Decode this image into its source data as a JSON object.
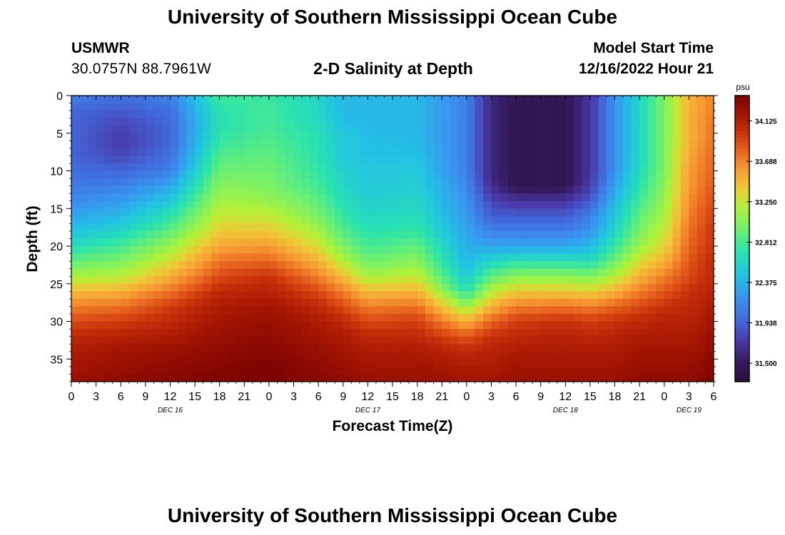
{
  "header": {
    "title": "University of Southern Mississippi Ocean Cube",
    "station": "USMWR",
    "coordinates": "30.0757N  88.7961W",
    "subtitle": "2-D Salinity at Depth",
    "start_label": "Model Start Time",
    "start_value": "12/16/2022 Hour 21"
  },
  "footer": {
    "title": "University of Southern Mississippi Ocean Cube"
  },
  "chart_data": {
    "type": "heatmap",
    "title": "2-D Salinity at Depth",
    "xlabel": "Forecast Time(Z)",
    "ylabel": "Depth (ft)",
    "x_range": [
      0,
      78
    ],
    "x_unit": "hours since Dec 16 00Z",
    "y_range": [
      0,
      38
    ],
    "x_ticks": [
      {
        "h": 0,
        "label": "0"
      },
      {
        "h": 3,
        "label": "3"
      },
      {
        "h": 6,
        "label": "6"
      },
      {
        "h": 9,
        "label": "9"
      },
      {
        "h": 12,
        "label": "12"
      },
      {
        "h": 15,
        "label": "15"
      },
      {
        "h": 18,
        "label": "18"
      },
      {
        "h": 21,
        "label": "21"
      },
      {
        "h": 24,
        "label": "0"
      },
      {
        "h": 27,
        "label": "3"
      },
      {
        "h": 30,
        "label": "6"
      },
      {
        "h": 33,
        "label": "9"
      },
      {
        "h": 36,
        "label": "12"
      },
      {
        "h": 39,
        "label": "15"
      },
      {
        "h": 42,
        "label": "18"
      },
      {
        "h": 45,
        "label": "21"
      },
      {
        "h": 48,
        "label": "0"
      },
      {
        "h": 51,
        "label": "3"
      },
      {
        "h": 54,
        "label": "6"
      },
      {
        "h": 57,
        "label": "9"
      },
      {
        "h": 60,
        "label": "12"
      },
      {
        "h": 63,
        "label": "15"
      },
      {
        "h": 66,
        "label": "18"
      },
      {
        "h": 69,
        "label": "21"
      },
      {
        "h": 72,
        "label": "0"
      },
      {
        "h": 75,
        "label": "3"
      },
      {
        "h": 78,
        "label": "6"
      }
    ],
    "date_labels": [
      {
        "h": 12,
        "label": "DEC 16"
      },
      {
        "h": 36,
        "label": "DEC 17"
      },
      {
        "h": 60,
        "label": "DEC 18"
      },
      {
        "h": 75,
        "label": "DEC 19"
      }
    ],
    "y_ticks": [
      0,
      5,
      10,
      15,
      20,
      25,
      30,
      35
    ],
    "colorbar": {
      "unit": "psu",
      "min": 31.3,
      "max": 34.4,
      "ticks": [
        "34.125",
        "33.688",
        "33.250",
        "32.812",
        "32.375",
        "31.938",
        "31.500"
      ]
    },
    "colormap": [
      {
        "v": 31.3,
        "c": "#2a0f3e"
      },
      {
        "v": 31.5,
        "c": "#33195c"
      },
      {
        "v": 31.75,
        "c": "#4a3aaa"
      },
      {
        "v": 31.95,
        "c": "#4266d8"
      },
      {
        "v": 32.2,
        "c": "#3a92f0"
      },
      {
        "v": 32.45,
        "c": "#22c2e4"
      },
      {
        "v": 32.7,
        "c": "#28e2b0"
      },
      {
        "v": 32.95,
        "c": "#6ef070"
      },
      {
        "v": 33.2,
        "c": "#b4f236"
      },
      {
        "v": 33.4,
        "c": "#f0c838"
      },
      {
        "v": 33.6,
        "c": "#f89c34"
      },
      {
        "v": 33.8,
        "c": "#e8641e"
      },
      {
        "v": 34.0,
        "c": "#c8300a"
      },
      {
        "v": 34.2,
        "c": "#a21402"
      },
      {
        "v": 34.4,
        "c": "#7c0402"
      }
    ],
    "depth_levels": [
      0,
      2,
      4,
      6,
      8,
      10,
      12,
      14,
      16,
      18,
      20,
      22,
      24,
      26,
      28,
      30,
      32,
      34,
      36,
      38
    ],
    "time_hours": [
      0,
      6,
      12,
      18,
      24,
      30,
      33,
      36,
      42,
      48,
      51,
      54,
      60,
      63,
      66,
      69,
      72,
      75,
      78
    ],
    "values": [
      [
        32.1,
        32.0,
        32.1,
        32.8,
        32.75,
        32.6,
        32.4,
        32.4,
        32.4,
        32.1,
        31.6,
        31.45,
        31.45,
        31.7,
        32.2,
        32.6,
        33.0,
        33.5,
        33.7
      ],
      [
        31.95,
        31.9,
        32.0,
        32.7,
        32.8,
        32.6,
        32.4,
        32.4,
        32.4,
        32.1,
        31.6,
        31.45,
        31.45,
        31.7,
        32.2,
        32.6,
        33.0,
        33.5,
        33.7
      ],
      [
        31.95,
        31.8,
        31.95,
        32.7,
        32.8,
        32.65,
        32.45,
        32.4,
        32.4,
        32.1,
        31.6,
        31.45,
        31.45,
        31.7,
        32.2,
        32.6,
        33.0,
        33.5,
        33.75
      ],
      [
        31.95,
        31.75,
        31.95,
        32.75,
        32.85,
        32.7,
        32.5,
        32.45,
        32.4,
        32.1,
        31.6,
        31.45,
        31.45,
        31.7,
        32.2,
        32.6,
        33.0,
        33.5,
        33.75
      ],
      [
        31.95,
        31.8,
        32.0,
        32.85,
        32.9,
        32.7,
        32.5,
        32.45,
        32.45,
        32.1,
        31.6,
        31.45,
        31.45,
        31.7,
        32.2,
        32.6,
        33.0,
        33.55,
        33.8
      ],
      [
        32.0,
        31.95,
        32.1,
        32.95,
        32.95,
        32.75,
        32.55,
        32.5,
        32.5,
        32.1,
        31.6,
        31.45,
        31.45,
        31.7,
        32.2,
        32.65,
        33.0,
        33.6,
        33.8
      ],
      [
        32.05,
        32.1,
        32.3,
        33.05,
        33.0,
        32.8,
        32.6,
        32.5,
        32.55,
        32.15,
        31.65,
        31.45,
        31.45,
        31.75,
        32.3,
        32.7,
        33.05,
        33.6,
        33.85
      ],
      [
        32.15,
        32.25,
        32.5,
        33.15,
        33.1,
        32.9,
        32.65,
        32.55,
        32.6,
        32.2,
        31.8,
        31.7,
        31.7,
        31.9,
        32.4,
        32.8,
        33.1,
        33.65,
        33.9
      ],
      [
        32.3,
        32.4,
        32.7,
        33.25,
        33.25,
        33.0,
        32.75,
        32.6,
        32.65,
        32.25,
        31.9,
        31.9,
        31.9,
        32.1,
        32.5,
        32.9,
        33.15,
        33.7,
        33.95
      ],
      [
        32.45,
        32.6,
        32.9,
        33.4,
        33.4,
        33.15,
        32.85,
        32.7,
        32.75,
        32.3,
        32.1,
        32.1,
        32.1,
        32.2,
        32.6,
        33.0,
        33.25,
        33.75,
        34.0
      ],
      [
        32.65,
        32.8,
        33.1,
        33.55,
        33.6,
        33.3,
        33.0,
        32.8,
        32.9,
        32.35,
        32.3,
        32.3,
        32.3,
        32.4,
        32.75,
        33.1,
        33.35,
        33.8,
        34.0
      ],
      [
        32.9,
        33.0,
        33.3,
        33.75,
        33.8,
        33.5,
        33.2,
        32.95,
        33.05,
        32.4,
        32.6,
        32.7,
        32.7,
        32.65,
        32.95,
        33.3,
        33.5,
        33.85,
        34.05
      ],
      [
        33.15,
        33.2,
        33.5,
        33.9,
        34.0,
        33.7,
        33.45,
        33.15,
        33.25,
        32.5,
        32.9,
        33.05,
        33.05,
        33.0,
        33.2,
        33.5,
        33.7,
        33.9,
        34.05
      ],
      [
        33.45,
        33.5,
        33.75,
        34.05,
        34.1,
        33.9,
        33.7,
        33.45,
        33.5,
        32.7,
        33.2,
        33.4,
        33.4,
        33.35,
        33.5,
        33.7,
        33.85,
        34.0,
        34.1
      ],
      [
        33.7,
        33.75,
        33.95,
        34.15,
        34.2,
        34.05,
        33.9,
        33.7,
        33.75,
        33.1,
        33.5,
        33.7,
        33.75,
        33.7,
        33.8,
        33.9,
        34.0,
        34.05,
        34.15
      ],
      [
        33.9,
        33.95,
        34.05,
        34.2,
        34.25,
        34.15,
        34.05,
        33.9,
        33.95,
        33.5,
        33.8,
        33.95,
        34.0,
        33.95,
        34.0,
        34.05,
        34.1,
        34.1,
        34.2
      ],
      [
        34.05,
        34.1,
        34.15,
        34.25,
        34.3,
        34.2,
        34.15,
        34.05,
        34.05,
        33.85,
        34.0,
        34.05,
        34.1,
        34.05,
        34.1,
        34.15,
        34.15,
        34.15,
        34.25
      ],
      [
        34.15,
        34.2,
        34.25,
        34.3,
        34.35,
        34.25,
        34.2,
        34.15,
        34.15,
        34.05,
        34.1,
        34.15,
        34.15,
        34.15,
        34.15,
        34.2,
        34.2,
        34.2,
        34.3
      ],
      [
        34.2,
        34.25,
        34.3,
        34.35,
        34.4,
        34.3,
        34.25,
        34.2,
        34.2,
        34.15,
        34.15,
        34.2,
        34.2,
        34.2,
        34.2,
        34.25,
        34.25,
        34.25,
        34.35
      ],
      [
        34.25,
        34.3,
        34.35,
        34.4,
        34.4,
        34.35,
        34.3,
        34.25,
        34.25,
        34.2,
        34.2,
        34.25,
        34.25,
        34.25,
        34.25,
        34.3,
        34.3,
        34.3,
        34.4
      ]
    ]
  }
}
